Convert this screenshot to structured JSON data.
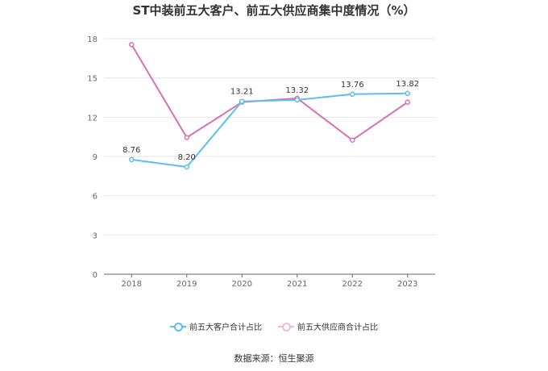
{
  "chart_data": {
    "type": "line",
    "title": "ST中装前五大客户、前五大供应商集中度情况（%）",
    "categories": [
      "2018",
      "2019",
      "2020",
      "2021",
      "2022",
      "2023"
    ],
    "ylim": [
      0,
      18
    ],
    "yticks": [
      0,
      3,
      6,
      9,
      12,
      15,
      18
    ],
    "grid": true,
    "legend_position": "bottom",
    "series": [
      {
        "name": "前五大客户合计占比",
        "values": [
          8.76,
          8.2,
          13.21,
          13.32,
          13.76,
          13.82
        ],
        "labels": [
          "8.76",
          "8.20",
          "13.21",
          "13.32",
          "13.76",
          "13.82"
        ],
        "color": "#5bc0eb"
      },
      {
        "name": "前五大供应商合计占比",
        "values": [
          17.55,
          10.45,
          13.15,
          13.45,
          10.25,
          13.15
        ],
        "labels": [
          "",
          "",
          "",
          "",
          "",
          ""
        ],
        "color": "#d86fb7"
      }
    ],
    "source": "数据来源：恒生聚源"
  }
}
